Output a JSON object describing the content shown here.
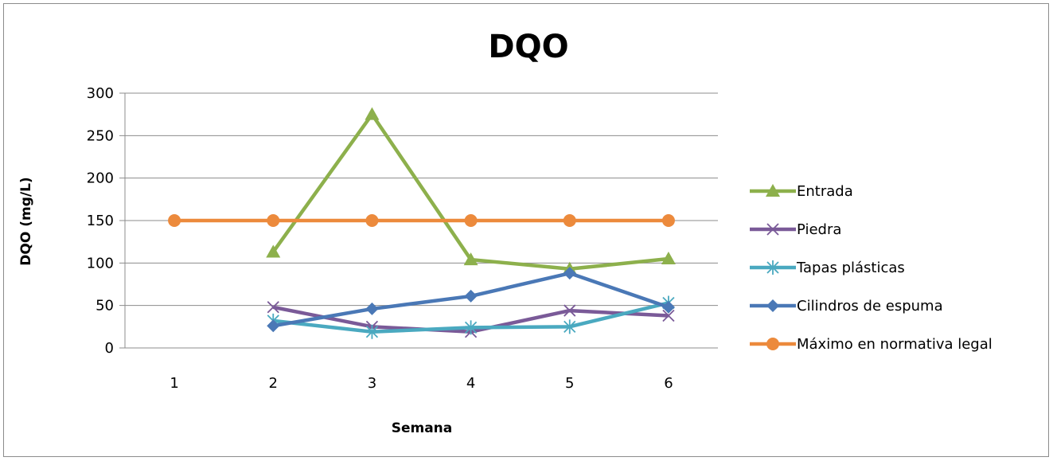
{
  "chart_data": {
    "type": "line",
    "title": "DQO",
    "xlabel": "Semana",
    "ylabel": "DQO (mg/L)",
    "categories": [
      "1",
      "2",
      "3",
      "4",
      "5",
      "6"
    ],
    "ylim": [
      0,
      300
    ],
    "yticks": [
      "0",
      "50",
      "100",
      "150",
      "200",
      "250",
      "300"
    ],
    "grid": true,
    "legend_position": "right",
    "series": [
      {
        "name": "Entrada",
        "color": "#8db04c",
        "marker": "triangle",
        "values": [
          null,
          113,
          275,
          104,
          93,
          105
        ]
      },
      {
        "name": "Piedra",
        "color": "#7a5a98",
        "marker": "x",
        "values": [
          null,
          48,
          25,
          19,
          44,
          38
        ]
      },
      {
        "name": "Tapas plásticas",
        "color": "#4aa9c0",
        "marker": "asterisk",
        "values": [
          null,
          32,
          19,
          24,
          25,
          53
        ]
      },
      {
        "name": "Cilindros de espuma",
        "color": "#4a78b6",
        "marker": "diamond",
        "values": [
          null,
          26,
          46,
          61,
          88,
          48
        ]
      },
      {
        "name": "Máximo en normativa legal",
        "color": "#ec8a3c",
        "marker": "circle",
        "values": [
          150,
          150,
          150,
          150,
          150,
          150
        ]
      }
    ]
  }
}
